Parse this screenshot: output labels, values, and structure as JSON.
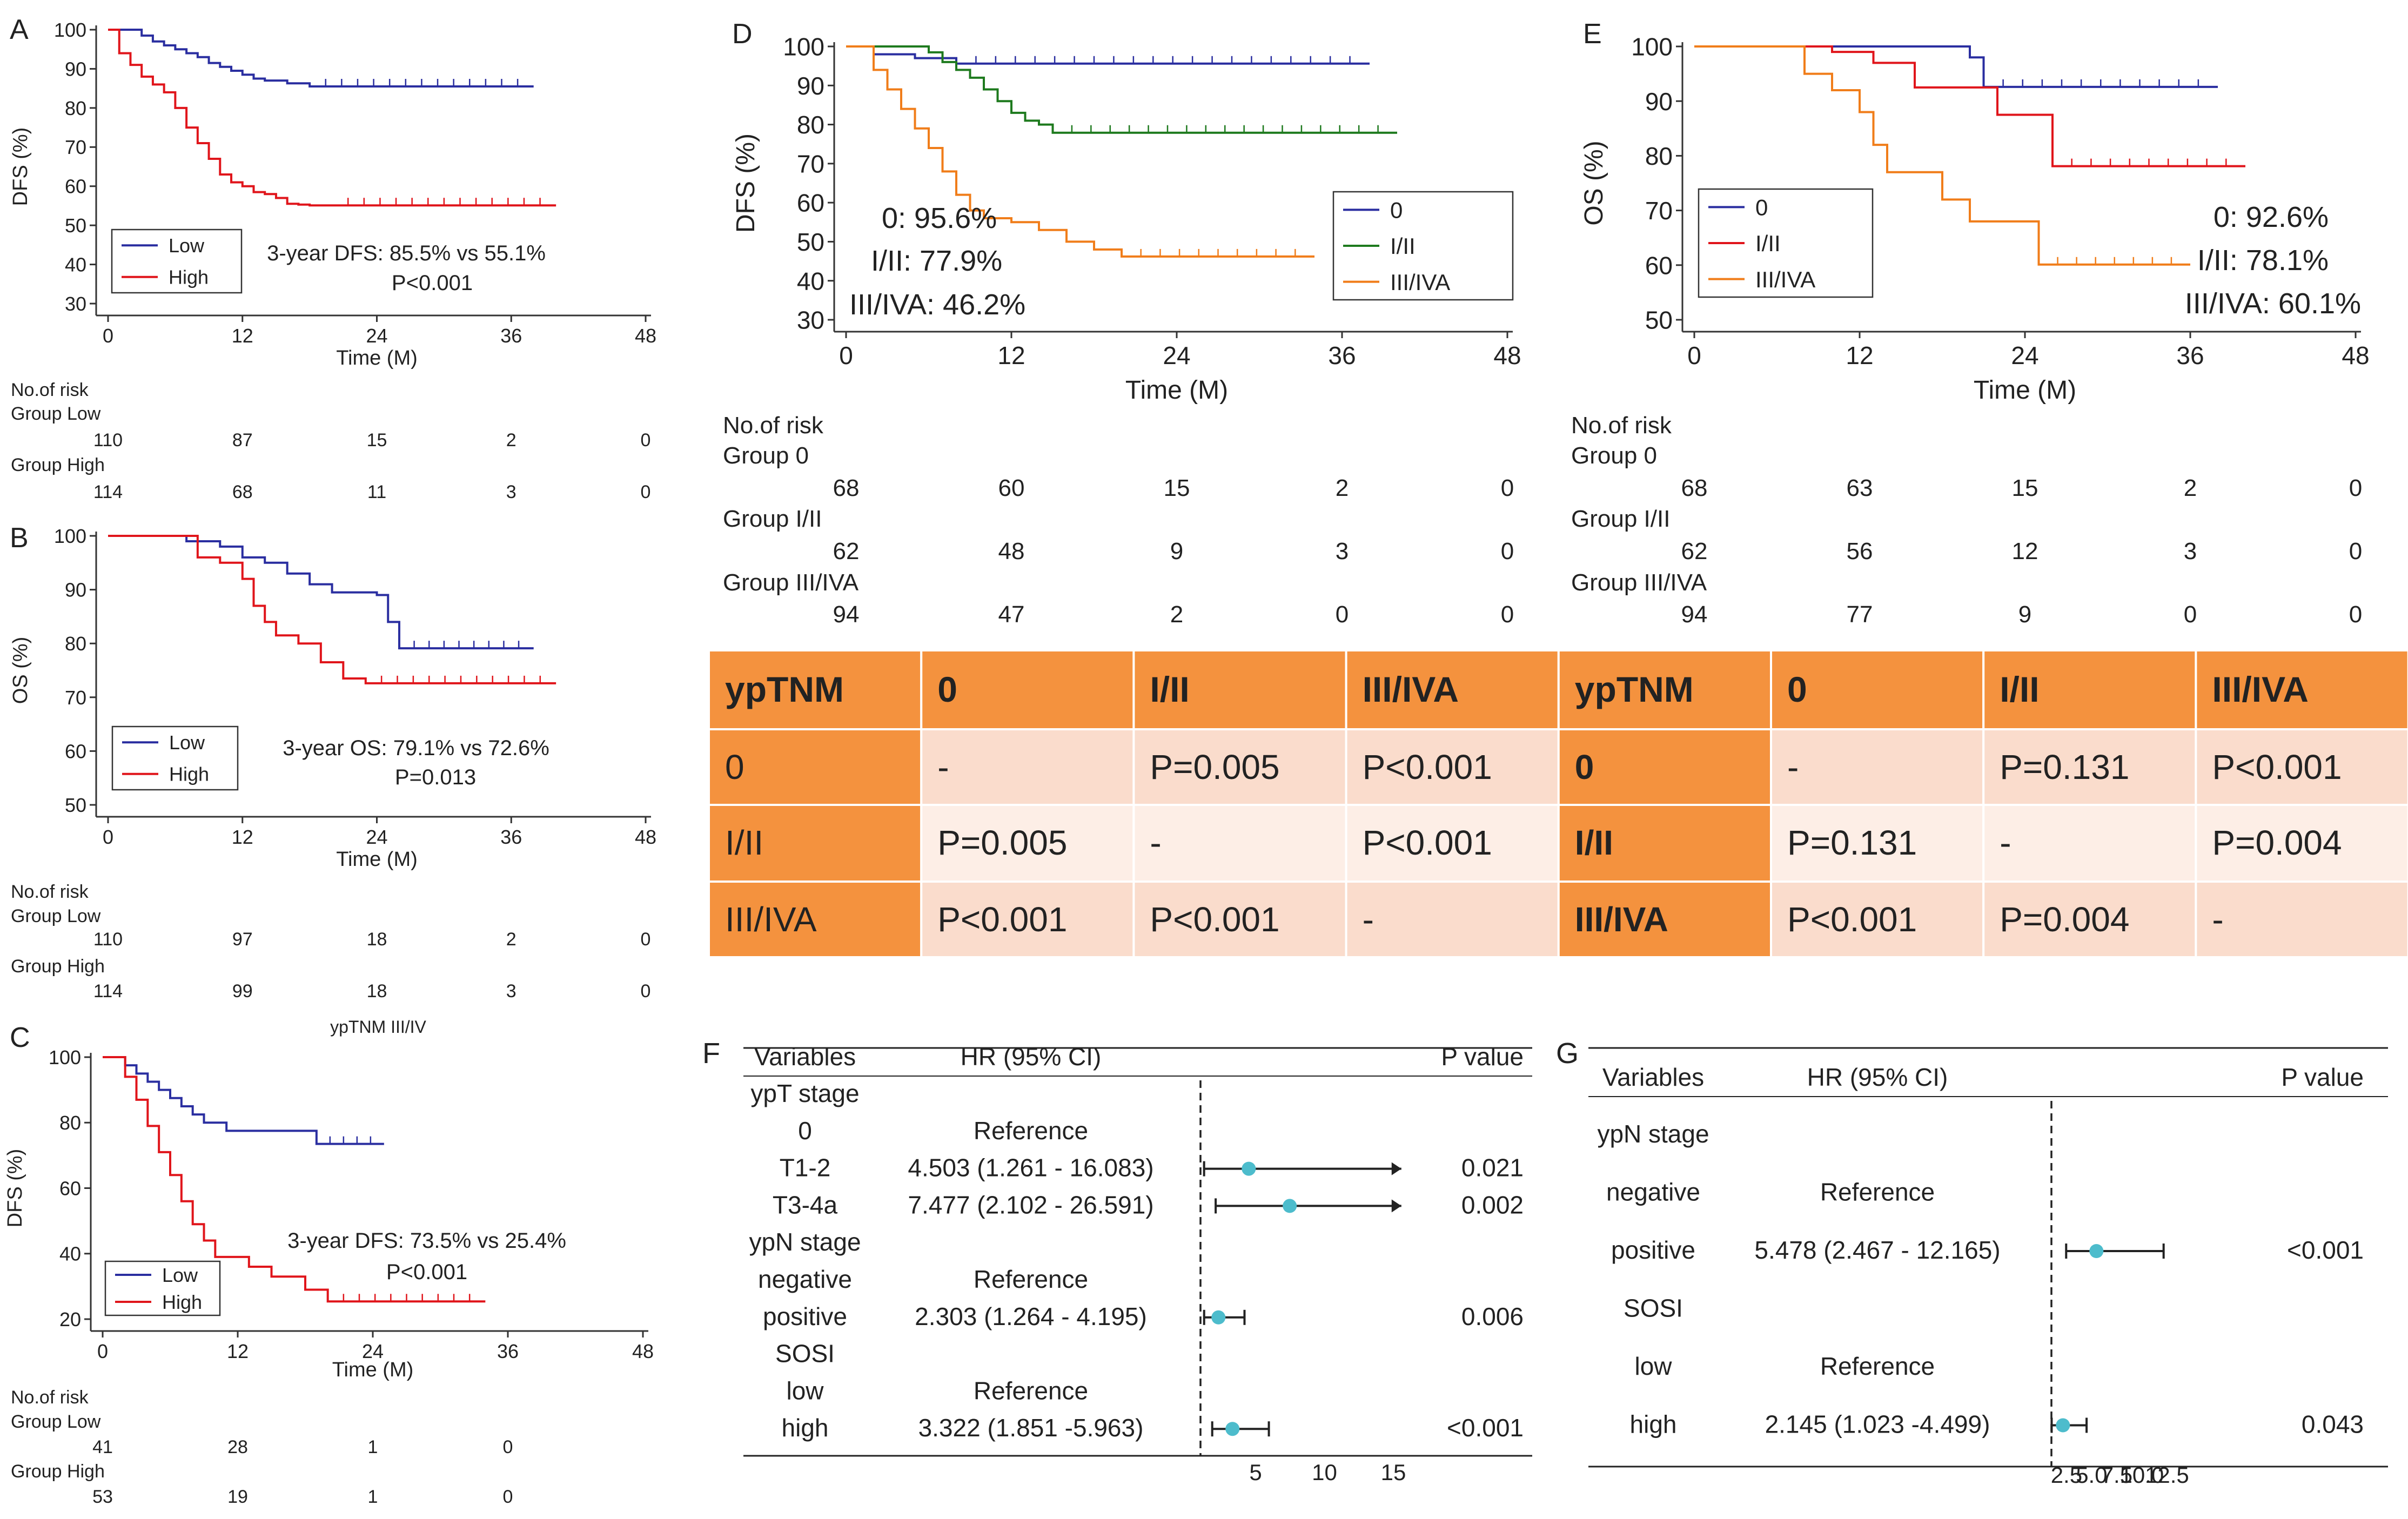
{
  "colors": {
    "low": "#2a2ea0",
    "high": "#e0151b",
    "g0": "#2a2ea0",
    "g12": "#1e7a1e",
    "g3": "#f07d1a",
    "dot": "#4dbccc",
    "tableDark": "#f4923e",
    "tableLight": "#fadccc",
    "tableLighter": "#fdeee6"
  },
  "chart_data": [
    {
      "panel": "A",
      "type": "line",
      "ylabel": "DFS (%)",
      "xlabel": "Time (M)",
      "xlim": [
        0,
        48
      ],
      "ylim": [
        30,
        100
      ],
      "xticks": [
        "0",
        "12",
        "24",
        "36",
        "48"
      ],
      "yticks": [
        "30",
        "40",
        "50",
        "60",
        "70",
        "80",
        "90",
        "100"
      ],
      "series": [
        {
          "name": "Low",
          "color_key": "low",
          "x": [
            0,
            3,
            4,
            5,
            6,
            7,
            8,
            9,
            10,
            11,
            12,
            13,
            14,
            16,
            18,
            38
          ],
          "y": [
            100,
            98.5,
            97,
            96,
            95,
            94,
            93,
            91.5,
            90.5,
            89.5,
            88.5,
            87.5,
            87,
            86.3,
            85.5,
            85.5
          ]
        },
        {
          "name": "High",
          "color_key": "high",
          "x": [
            0,
            1,
            2,
            3,
            4,
            5,
            6,
            7,
            8,
            9,
            10,
            11,
            12,
            13,
            14,
            15,
            16,
            17,
            18,
            20,
            40
          ],
          "y": [
            100,
            94,
            91,
            88,
            86,
            84,
            80,
            75,
            71,
            67,
            63,
            61,
            60,
            58.5,
            58,
            57,
            55.5,
            55.3,
            55.1,
            55.1,
            55.1
          ]
        }
      ],
      "annotation": [
        "3-year DFS: 85.5% vs 55.1%",
        "P<0.001"
      ],
      "risk_header": [
        "No.of risk"
      ],
      "risk": [
        {
          "label": "Group Low",
          "values": [
            "110",
            "87",
            "15",
            "2",
            "0"
          ]
        },
        {
          "label": "Group High",
          "values": [
            "114",
            "68",
            "11",
            "3",
            "0"
          ]
        }
      ]
    },
    {
      "panel": "B",
      "type": "line",
      "ylabel": "OS (%)",
      "xlabel": "Time (M)",
      "xlim": [
        0,
        48
      ],
      "ylim": [
        50,
        100
      ],
      "xticks": [
        "0",
        "12",
        "24",
        "36",
        "48"
      ],
      "yticks": [
        "50",
        "60",
        "70",
        "80",
        "90",
        "100"
      ],
      "series": [
        {
          "name": "Low",
          "color_key": "low",
          "x": [
            0,
            7,
            10,
            12,
            14,
            16,
            18,
            20,
            22,
            24,
            25,
            26,
            38
          ],
          "y": [
            100,
            99,
            98,
            96,
            95,
            93,
            91,
            89.5,
            89.5,
            89,
            84,
            79.1,
            79.1
          ]
        },
        {
          "name": "High",
          "color_key": "high",
          "x": [
            0,
            8,
            10,
            12,
            13,
            14,
            15,
            17,
            19,
            21,
            23,
            40
          ],
          "y": [
            100,
            96,
            95,
            92,
            87,
            84,
            81.5,
            80,
            76.5,
            73.5,
            72.6,
            72.6
          ]
        }
      ],
      "annotation": [
        "3-year OS: 79.1% vs 72.6%",
        "P=0.013"
      ],
      "risk_header": [
        "No.of risk"
      ],
      "risk": [
        {
          "label": "Group Low",
          "values": [
            "110",
            "97",
            "18",
            "2",
            "0"
          ]
        },
        {
          "label": "Group High",
          "values": [
            "114",
            "99",
            "18",
            "3",
            "0"
          ]
        }
      ],
      "footer": "ypTNM III/IV"
    },
    {
      "panel": "C",
      "type": "line",
      "ylabel": "DFS (%)",
      "xlabel": "Time (M)",
      "xlim": [
        0,
        48
      ],
      "ylim": [
        20,
        100
      ],
      "xticks": [
        "0",
        "12",
        "24",
        "36",
        "48"
      ],
      "yticks": [
        "20",
        "40",
        "60",
        "80",
        "100"
      ],
      "series": [
        {
          "name": "Low",
          "color_key": "low",
          "x": [
            0,
            2,
            3,
            4,
            5,
            6,
            7,
            8,
            9,
            11,
            19,
            25
          ],
          "y": [
            100,
            97.5,
            95,
            92.5,
            90,
            87.5,
            85,
            82.5,
            80,
            77.5,
            73.5,
            73.5
          ]
        },
        {
          "name": "High",
          "color_key": "high",
          "x": [
            0,
            2,
            3,
            4,
            5,
            6,
            7,
            8,
            9,
            10,
            13,
            15,
            18,
            20,
            34
          ],
          "y": [
            100,
            94,
            87,
            79,
            71,
            64,
            56,
            49,
            44,
            39,
            36,
            33,
            29,
            25.4,
            25.4
          ]
        }
      ],
      "annotation": [
        "3-year DFS: 73.5% vs 25.4%",
        "P<0.001"
      ],
      "risk_header": [
        "No.of risk"
      ],
      "risk": [
        {
          "label": "Group Low",
          "values": [
            "41",
            "28",
            "1",
            "0"
          ]
        },
        {
          "label": "Group High",
          "values": [
            "53",
            "19",
            "1",
            "0"
          ]
        }
      ]
    },
    {
      "panel": "D",
      "type": "line",
      "ylabel": "DFS (%)",
      "xlabel": "Time (M)",
      "xlim": [
        0,
        48
      ],
      "ylim": [
        30,
        100
      ],
      "xticks": [
        "0",
        "12",
        "24",
        "36",
        "48"
      ],
      "yticks": [
        "30",
        "40",
        "50",
        "60",
        "70",
        "80",
        "90",
        "100"
      ],
      "series": [
        {
          "name": "0",
          "color_key": "g0",
          "x": [
            0,
            2,
            5,
            8,
            38
          ],
          "y": [
            100,
            98,
            97,
            95.6,
            95.6
          ]
        },
        {
          "name": "I/II",
          "color_key": "g12",
          "x": [
            0,
            6,
            7,
            8,
            9,
            10,
            11,
            12,
            13,
            14,
            15,
            40
          ],
          "y": [
            100,
            98.5,
            96,
            94,
            92,
            89,
            86,
            83,
            81,
            80,
            77.9,
            77.9
          ]
        },
        {
          "name": "III/IVA",
          "color_key": "g3",
          "x": [
            0,
            2,
            3,
            4,
            5,
            6,
            7,
            8,
            9,
            10,
            12,
            14,
            16,
            18,
            20,
            34
          ],
          "y": [
            100,
            94,
            89,
            84,
            79,
            74,
            68,
            62,
            58,
            56,
            55,
            53,
            50,
            48,
            46.2,
            46.2
          ]
        }
      ],
      "annotation": [
        "0: 95.6%",
        "I/II: 77.9%",
        "III/IVA: 46.2%"
      ],
      "risk_header": [
        "No.of risk"
      ],
      "risk": [
        {
          "label": "Group 0",
          "values": [
            "68",
            "60",
            "15",
            "2",
            "0"
          ]
        },
        {
          "label": "Group I/II",
          "values": [
            "62",
            "48",
            "9",
            "3",
            "0"
          ]
        },
        {
          "label": "Group III/IVA",
          "values": [
            "94",
            "47",
            "2",
            "0",
            "0"
          ]
        }
      ]
    },
    {
      "panel": "E",
      "type": "line",
      "ylabel": "OS (%)",
      "xlabel": "Time (M)",
      "xlim": [
        0,
        48
      ],
      "ylim": [
        50,
        100
      ],
      "xticks": [
        "0",
        "12",
        "24",
        "36",
        "48"
      ],
      "yticks": [
        "50",
        "60",
        "70",
        "80",
        "90",
        "100"
      ],
      "series": [
        {
          "name": "0",
          "color_key": "g0",
          "x": [
            0,
            20,
            21,
            38
          ],
          "y": [
            100,
            98,
            92.6,
            92.6
          ]
        },
        {
          "name": "I/II",
          "color_key": "g12",
          "color_override": "#e0151b",
          "x": [
            0,
            10,
            13,
            16,
            22,
            26,
            40
          ],
          "y": [
            100,
            99,
            97,
            92.5,
            87.5,
            78.1,
            78.1
          ]
        },
        {
          "name": "III/IVA",
          "color_key": "g3",
          "x": [
            0,
            8,
            10,
            12,
            13,
            14,
            18,
            20,
            25,
            36
          ],
          "y": [
            100,
            95,
            92,
            88,
            82,
            77,
            72,
            68,
            60.1,
            60.1
          ]
        }
      ],
      "annotation": [
        "0: 92.6%",
        "I/II: 78.1%",
        "III/IVA: 60.1%"
      ],
      "risk_header": [
        "No.of risk"
      ],
      "risk": [
        {
          "label": "Group 0",
          "values": [
            "68",
            "63",
            "15",
            "2",
            "0"
          ]
        },
        {
          "label": "Group I/II",
          "values": [
            "62",
            "56",
            "12",
            "3",
            "0"
          ]
        },
        {
          "label": "Group III/IVA",
          "values": [
            "94",
            "77",
            "9",
            "0",
            "0"
          ]
        }
      ]
    },
    {
      "panel": "F",
      "type": "table",
      "kind": "forest",
      "headers": [
        "Variables",
        "HR (95% CI)",
        "P value"
      ],
      "xticks": [
        "5",
        "10",
        "15"
      ],
      "xlim": [
        0,
        19
      ],
      "ref": 1,
      "rows": [
        {
          "var": "ypT stage",
          "hr": "",
          "p": ""
        },
        {
          "var": "0",
          "hr": "Reference",
          "p": ""
        },
        {
          "var": "T1-2",
          "hr": "4.503 (1.261 - 16.083)",
          "p": "0.021",
          "est": 4.503,
          "lo": 1.261,
          "hi": 16.083
        },
        {
          "var": "T3-4a",
          "hr": "7.477 (2.102 - 26.591)",
          "p": "0.002",
          "est": 7.477,
          "lo": 2.102,
          "hi": 26.591
        },
        {
          "var": "ypN stage",
          "hr": "",
          "p": ""
        },
        {
          "var": "negative",
          "hr": "Reference",
          "p": ""
        },
        {
          "var": "positive",
          "hr": "2.303 (1.264 - 4.195)",
          "p": "0.006",
          "est": 2.303,
          "lo": 1.264,
          "hi": 4.195
        },
        {
          "var": "SOSI",
          "hr": "",
          "p": ""
        },
        {
          "var": "low",
          "hr": "Reference",
          "p": ""
        },
        {
          "var": "high",
          "hr": "3.322 (1.851 -5.963)",
          "p": "<0.001",
          "est": 3.322,
          "lo": 1.851,
          "hi": 5.963
        }
      ]
    },
    {
      "panel": "G",
      "type": "table",
      "kind": "forest",
      "headers": [
        "Variables",
        "HR (95% CI)",
        "P value"
      ],
      "xticks": [
        "2.5",
        "5.0",
        "7.5",
        "10.0",
        "12.5"
      ],
      "xlim": [
        0,
        16
      ],
      "ref": 1,
      "rows": [
        {
          "var": "ypN stage",
          "hr": "",
          "p": ""
        },
        {
          "var": "negative",
          "hr": "Reference",
          "p": ""
        },
        {
          "var": "positive",
          "hr": "5.478 (2.467 - 12.165)",
          "p": "<0.001",
          "est": 5.478,
          "lo": 2.467,
          "hi": 12.165
        },
        {
          "var": "SOSI",
          "hr": "",
          "p": ""
        },
        {
          "var": "low",
          "hr": "Reference",
          "p": ""
        },
        {
          "var": "high",
          "hr": "2.145 (1.023 -4.499)",
          "p": "0.043",
          "est": 2.145,
          "lo": 1.023,
          "hi": 4.499
        }
      ]
    },
    {
      "panel": "pvalue-table",
      "type": "table",
      "headers": [
        "ypTNM",
        "0",
        "I/II",
        "III/IVA",
        "ypTNM",
        "0",
        "I/II",
        "III/IVA"
      ],
      "rows": [
        [
          "0",
          "-",
          "P=0.005",
          "P<0.001",
          "0",
          "-",
          "P=0.131",
          "P<0.001"
        ],
        [
          "I/II",
          "P=0.005",
          "-",
          "P<0.001",
          "I/II",
          "P=0.131",
          "-",
          "P=0.004"
        ],
        [
          "III/IVA",
          "P<0.001",
          "P<0.001",
          "-",
          "III/IVA",
          "P<0.001",
          "P=0.004",
          "-"
        ]
      ]
    }
  ]
}
